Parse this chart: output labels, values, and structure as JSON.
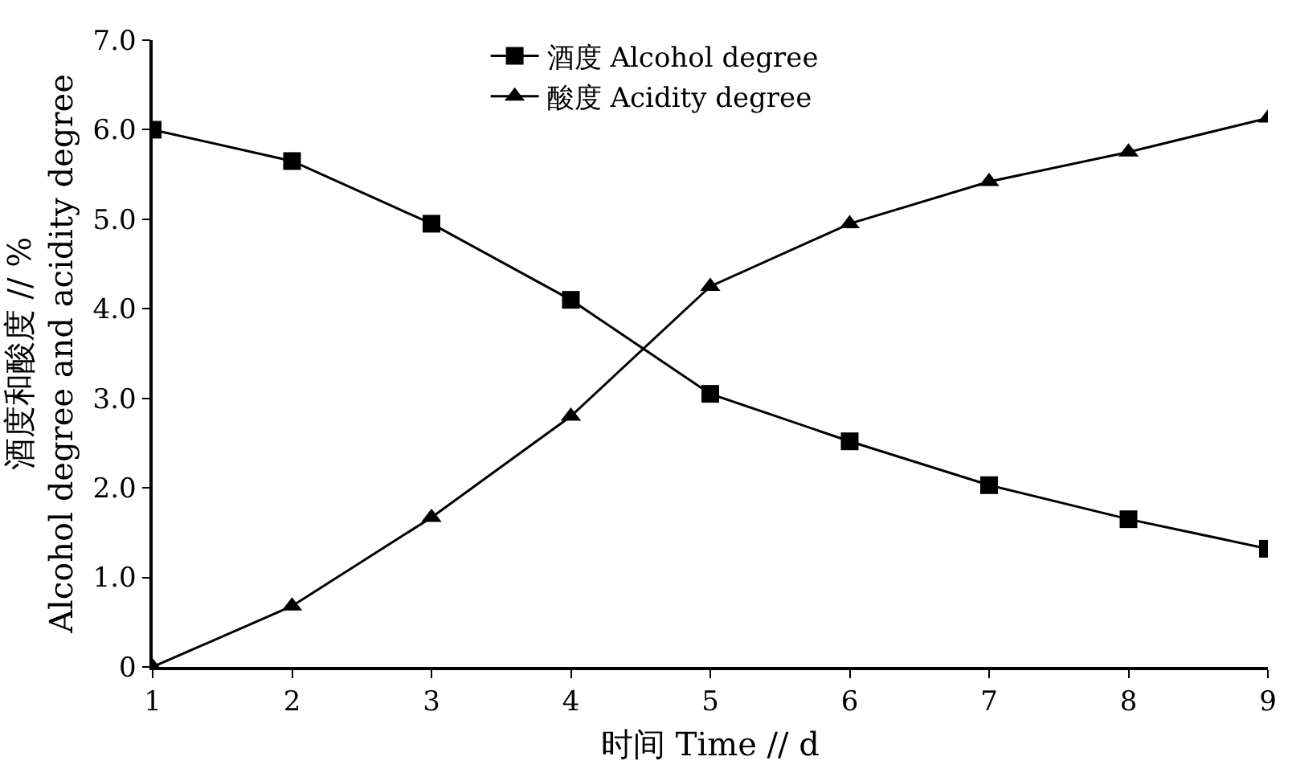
{
  "chart_data": {
    "type": "line",
    "xlabel": "时间 Time // d",
    "ylabel": "酒度和酸度 // %\nAlcohol degree and acidity degree",
    "x": [
      1,
      2,
      3,
      4,
      5,
      6,
      7,
      8,
      9
    ],
    "series": [
      {
        "name": "酒度 Alcohol degree",
        "color": "#000000",
        "marker": "square",
        "values": [
          6.0,
          5.65,
          4.95,
          4.1,
          3.05,
          2.52,
          2.03,
          1.65,
          1.32
        ]
      },
      {
        "name": "酸度 Acidity degree",
        "color": "#000000",
        "marker": "triangle",
        "values": [
          0,
          0.68,
          1.67,
          2.8,
          4.25,
          4.95,
          5.42,
          5.75,
          6.13
        ]
      }
    ],
    "xlim": [
      1,
      9
    ],
    "xticks": [
      1,
      2,
      3,
      4,
      5,
      6,
      7,
      8,
      9
    ],
    "ylim": [
      0,
      7
    ],
    "yticks": [
      0,
      {
        "value": 1,
        "label": "1.0"
      },
      {
        "value": 2,
        "label": "2.0"
      },
      {
        "value": 3,
        "label": "3.0"
      },
      {
        "value": 4,
        "label": "4.0"
      },
      {
        "value": 5,
        "label": "5.0"
      },
      {
        "value": 6,
        "label": "6.0"
      },
      {
        "value": 7,
        "label": "7.0"
      }
    ],
    "grid": false,
    "legend": "top",
    "line_style": "solid"
  }
}
